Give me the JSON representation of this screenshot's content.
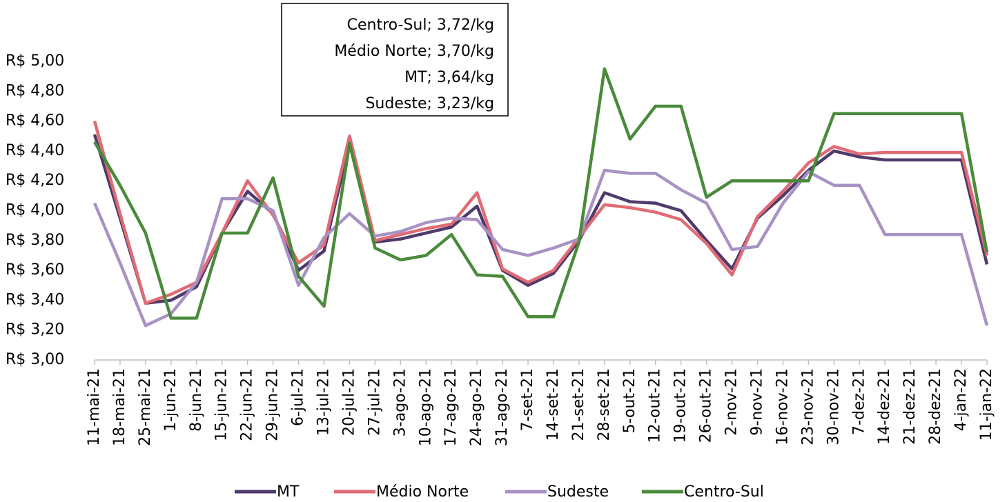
{
  "chart_data": {
    "type": "line",
    "annotations": [
      "Centro-Sul; 3,72/kg",
      "Médio Norte; 3,70/kg",
      "MT; 3,64/kg",
      "Sudeste; 3,23/kg"
    ],
    "categories": [
      "11-mai-21",
      "18-mai-21",
      "25-mai-21",
      "1-jun-21",
      "8-jun-21",
      "15-jun-21",
      "22-jun-21",
      "29-jun-21",
      "6-jul-21",
      "13-jul-21",
      "20-jul-21",
      "27-jul-21",
      "3-ago-21",
      "10-ago-21",
      "17-ago-21",
      "24-ago-21",
      "31-ago-21",
      "7-set-21",
      "14-set-21",
      "21-set-21",
      "28-set-21",
      "5-out-21",
      "12-out-21",
      "19-out-21",
      "26-out-21",
      "2-nov-21",
      "9-nov-21",
      "16-nov-21",
      "23-nov-21",
      "30-nov-21",
      "7-dez-21",
      "14-dez-21",
      "21-dez-21",
      "28-dez-21",
      "4-jan-22",
      "11-jan-22"
    ],
    "series": [
      {
        "name": "MT",
        "color": "#4f3a6b",
        "values": [
          4.51,
          3.95,
          3.38,
          3.4,
          3.49,
          3.85,
          4.13,
          3.98,
          3.6,
          3.73,
          4.45,
          3.79,
          3.81,
          3.85,
          3.89,
          4.03,
          3.6,
          3.5,
          3.58,
          3.8,
          4.12,
          4.06,
          4.05,
          4.0,
          3.8,
          3.61,
          3.95,
          4.1,
          4.27,
          4.4,
          4.36,
          4.34,
          4.34,
          4.34,
          4.34,
          3.64
        ]
      },
      {
        "name": "Médio Norte",
        "color": "#e06b74",
        "values": [
          4.6,
          3.98,
          3.38,
          3.44,
          3.52,
          3.85,
          4.2,
          3.97,
          3.65,
          3.77,
          4.5,
          3.8,
          3.84,
          3.88,
          3.91,
          4.12,
          3.61,
          3.52,
          3.6,
          3.82,
          4.04,
          4.02,
          3.99,
          3.94,
          3.78,
          3.57,
          3.96,
          4.13,
          4.32,
          4.43,
          4.38,
          4.39,
          4.39,
          4.39,
          4.39,
          3.7
        ]
      },
      {
        "name": "Sudeste",
        "color": "#a892c4",
        "values": [
          4.05,
          3.65,
          3.23,
          3.31,
          3.52,
          4.08,
          4.08,
          4.0,
          3.5,
          3.82,
          3.98,
          3.83,
          3.86,
          3.92,
          3.95,
          3.94,
          3.74,
          3.7,
          3.75,
          3.81,
          4.27,
          4.25,
          4.25,
          4.14,
          4.05,
          3.74,
          3.76,
          4.05,
          4.26,
          4.17,
          4.17,
          3.84,
          3.84,
          3.84,
          3.84,
          3.23
        ]
      },
      {
        "name": "Centro-Sul",
        "color": "#4a8a3b",
        "values": [
          4.46,
          4.17,
          3.85,
          3.28,
          3.28,
          3.85,
          3.85,
          4.22,
          3.56,
          3.36,
          4.45,
          3.75,
          3.67,
          3.7,
          3.84,
          3.57,
          3.56,
          3.29,
          3.29,
          3.79,
          4.95,
          4.48,
          4.7,
          4.7,
          4.09,
          4.2,
          4.2,
          4.2,
          4.2,
          4.65,
          4.65,
          4.65,
          4.65,
          4.65,
          4.65,
          3.72
        ]
      }
    ],
    "ylim": [
      3.0,
      5.0
    ],
    "yticks": [
      {
        "value": 3.0,
        "label": "R$ 3,00"
      },
      {
        "value": 3.2,
        "label": "R$ 3,20"
      },
      {
        "value": 3.4,
        "label": "R$ 3,40"
      },
      {
        "value": 3.6,
        "label": "R$ 3,60"
      },
      {
        "value": 3.8,
        "label": "R$ 3,80"
      },
      {
        "value": 4.0,
        "label": "R$ 4,00"
      },
      {
        "value": 4.2,
        "label": "R$ 4,20"
      },
      {
        "value": 4.4,
        "label": "R$ 4,40"
      },
      {
        "value": 4.6,
        "label": "R$ 4,60"
      },
      {
        "value": 4.8,
        "label": "R$ 4,80"
      },
      {
        "value": 5.0,
        "label": "R$ 5,00"
      }
    ],
    "grid": false
  }
}
